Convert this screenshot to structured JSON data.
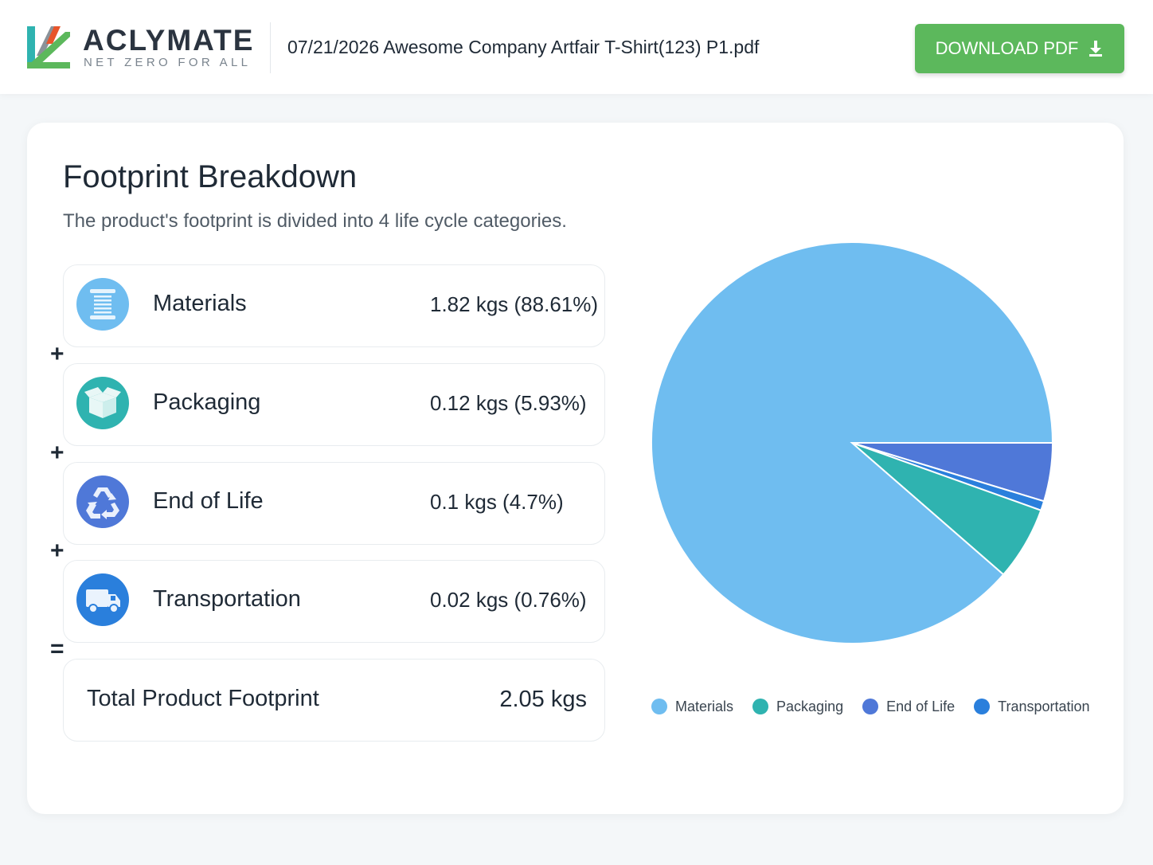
{
  "header": {
    "logo_name": "ACLYMATE",
    "logo_tagline": "NET ZERO FOR ALL",
    "file_name": "07/21/2026 Awesome Company Artfair T-Shirt(123) P1.pdf",
    "download_label": "DOWNLOAD PDF"
  },
  "breakdown": {
    "title": "Footprint Breakdown",
    "subtitle": "The product's footprint is divided into 4 life cycle categories.",
    "rows": [
      {
        "label": "Materials",
        "value": "1.82 kgs (88.61%)",
        "icon": "thread-spool-icon",
        "color": "#6fbdf0"
      },
      {
        "label": "Packaging",
        "value": "0.12 kgs (5.93%)",
        "icon": "open-box-icon",
        "color": "#2fb3b0"
      },
      {
        "label": "End of Life",
        "value": "0.1 kgs (4.7%)",
        "icon": "recycle-icon",
        "color": "#4f78d8"
      },
      {
        "label": "Transportation",
        "value": "0.02 kgs (0.76%)",
        "icon": "truck-icon",
        "color": "#2a7fdc"
      }
    ],
    "operators": [
      "+",
      "+",
      "+",
      "="
    ],
    "total_label": "Total Product Footprint",
    "total_value": "2.05 kgs"
  },
  "chart_data": {
    "type": "pie",
    "categories": [
      "Materials",
      "Packaging",
      "End of Life",
      "Transportation"
    ],
    "values": [
      88.61,
      5.93,
      4.7,
      0.76
    ],
    "colors": [
      "#6fbdf0",
      "#2fb3b0",
      "#4f78d8",
      "#2a7fdc"
    ],
    "legend_position": "bottom"
  }
}
